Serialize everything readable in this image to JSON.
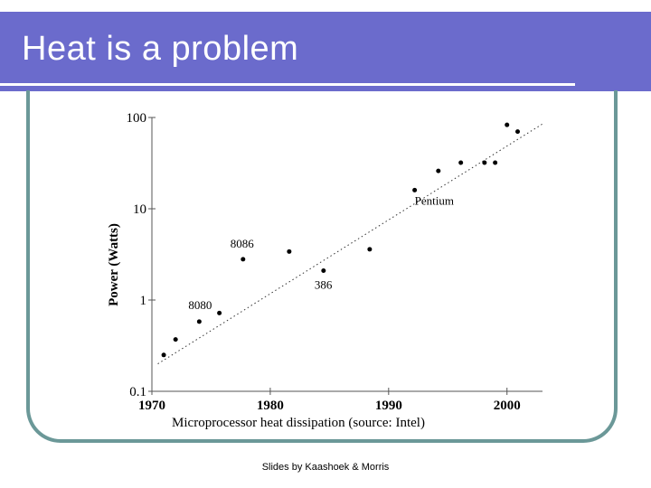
{
  "slide": {
    "title": "Heat is a problem",
    "footer": "Slides by Kaashoek & Morris",
    "colors": {
      "title_bar": "#6b6bcc",
      "frame": "#6b9898"
    }
  },
  "chart_data": {
    "type": "scatter",
    "title": "",
    "xlabel": "Microprocessor heat dissipation (source: Intel)",
    "ylabel": "Power (Watts)",
    "y_scale": "log",
    "xlim": [
      1970,
      2003
    ],
    "ylim": [
      0.1,
      100
    ],
    "x_ticks": [
      "1970",
      "1980",
      "1990",
      "2000"
    ],
    "y_ticks": [
      "100",
      "10",
      "1",
      "0.1"
    ],
    "grid": false,
    "legend": "none",
    "points": [
      {
        "x": 1971,
        "y": 0.25
      },
      {
        "x": 1972,
        "y": 0.37
      },
      {
        "x": 1974,
        "y": 0.58,
        "label": "8080"
      },
      {
        "x": 1975.7,
        "y": 0.72
      },
      {
        "x": 1977.7,
        "y": 2.8,
        "label": "8086"
      },
      {
        "x": 1981.6,
        "y": 3.4
      },
      {
        "x": 1984.5,
        "y": 2.1,
        "label": "386"
      },
      {
        "x": 1988.4,
        "y": 3.6
      },
      {
        "x": 1992.2,
        "y": 16,
        "label": "Pentium"
      },
      {
        "x": 1994.2,
        "y": 26
      },
      {
        "x": 1996.1,
        "y": 32
      },
      {
        "x": 1998.1,
        "y": 32
      },
      {
        "x": 1999,
        "y": 32
      },
      {
        "x": 2000,
        "y": 83
      },
      {
        "x": 2000.9,
        "y": 70
      }
    ],
    "trend_line": {
      "style": "dotted",
      "from": {
        "x": 1970.5,
        "y": 0.2
      },
      "to": {
        "x": 2003,
        "y": 85
      }
    }
  }
}
